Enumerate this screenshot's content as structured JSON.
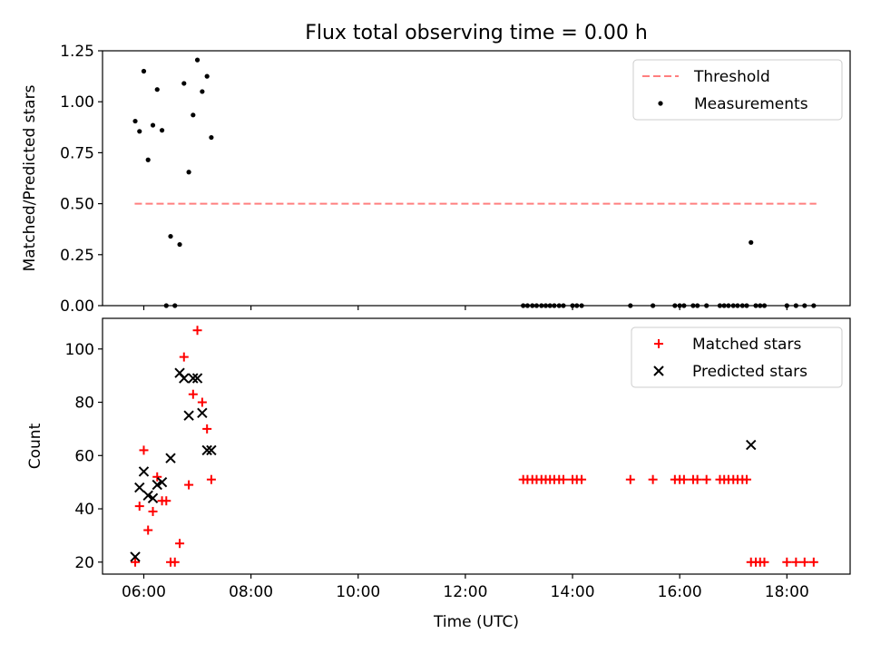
{
  "figure": {
    "title": "Flux total observing time = 0.00 h"
  },
  "chart_data": [
    {
      "type": "scatter",
      "panel": "top",
      "title": "Flux total observing time = 0.00 h",
      "xlabel": "",
      "ylabel": "Matched/Predicted stars",
      "xlim": [
        5.23,
        19.18
      ],
      "ylim": [
        0,
        1.25
      ],
      "yticks": [
        0.0,
        0.25,
        0.5,
        0.75,
        1.0,
        1.25
      ],
      "ytick_labels": [
        "0.00",
        "0.25",
        "0.50",
        "0.75",
        "1.00",
        "1.25"
      ],
      "xticks": [
        6,
        8,
        10,
        12,
        14,
        16,
        18
      ],
      "grid": false,
      "legend_position": "top-right",
      "legend": [
        {
          "label": "Threshold",
          "kind": "dashed-line",
          "color": "#ff7f7f"
        },
        {
          "label": "Measurements",
          "kind": "dot",
          "color": "#000000"
        }
      ],
      "threshold": {
        "name": "Threshold",
        "x": [
          5.83,
          18.55
        ],
        "y": 0.5,
        "color": "#ff7f7f"
      },
      "series": [
        {
          "name": "Measurements",
          "marker": "dot",
          "color": "#000000",
          "points": [
            [
              5.84,
              0.905
            ],
            [
              5.92,
              0.855
            ],
            [
              6.0,
              1.15
            ],
            [
              6.08,
              0.715
            ],
            [
              6.17,
              0.885
            ],
            [
              6.25,
              1.06
            ],
            [
              6.34,
              0.86
            ],
            [
              6.42,
              0.0
            ],
            [
              6.5,
              0.34
            ],
            [
              6.58,
              0.0
            ],
            [
              6.67,
              0.3
            ],
            [
              6.75,
              1.09
            ],
            [
              6.84,
              0.655
            ],
            [
              6.92,
              0.935
            ],
            [
              7.0,
              1.205
            ],
            [
              7.09,
              1.05
            ],
            [
              7.18,
              1.125
            ],
            [
              7.26,
              0.825
            ],
            [
              13.08,
              0.0
            ],
            [
              13.16,
              0.0
            ],
            [
              13.25,
              0.0
            ],
            [
              13.33,
              0.0
            ],
            [
              13.42,
              0.0
            ],
            [
              13.5,
              0.0
            ],
            [
              13.58,
              0.0
            ],
            [
              13.66,
              0.0
            ],
            [
              13.75,
              0.0
            ],
            [
              13.83,
              0.0
            ],
            [
              14.0,
              0.0
            ],
            [
              14.08,
              0.0
            ],
            [
              14.17,
              0.0
            ],
            [
              15.08,
              0.0
            ],
            [
              15.5,
              0.0
            ],
            [
              15.91,
              0.0
            ],
            [
              16.0,
              0.0
            ],
            [
              16.08,
              0.0
            ],
            [
              16.25,
              0.0
            ],
            [
              16.33,
              0.0
            ],
            [
              16.5,
              0.0
            ],
            [
              16.75,
              0.0
            ],
            [
              16.83,
              0.0
            ],
            [
              16.91,
              0.0
            ],
            [
              17.0,
              0.0
            ],
            [
              17.08,
              0.0
            ],
            [
              17.17,
              0.0
            ],
            [
              17.25,
              0.0
            ],
            [
              17.33,
              0.31
            ],
            [
              17.42,
              0.0
            ],
            [
              17.5,
              0.0
            ],
            [
              17.58,
              0.0
            ],
            [
              18.0,
              0.0
            ],
            [
              18.17,
              0.0
            ],
            [
              18.33,
              0.0
            ],
            [
              18.5,
              0.0
            ]
          ]
        }
      ]
    },
    {
      "type": "scatter",
      "panel": "bottom",
      "title": "",
      "xlabel": "Time (UTC)",
      "ylabel": "Count",
      "xlim": [
        5.23,
        19.18
      ],
      "ylim": [
        15.5,
        111.5
      ],
      "yticks": [
        20,
        40,
        60,
        80,
        100
      ],
      "ytick_labels": [
        "20",
        "40",
        "60",
        "80",
        "100"
      ],
      "xticks": [
        6,
        8,
        10,
        12,
        14,
        16,
        18
      ],
      "xtick_labels": [
        "06:00",
        "08:00",
        "10:00",
        "12:00",
        "14:00",
        "16:00",
        "18:00"
      ],
      "grid": false,
      "legend_position": "top-right",
      "legend": [
        {
          "label": "Matched stars",
          "kind": "plus",
          "color": "#ff0000"
        },
        {
          "label": "Predicted stars",
          "kind": "cross",
          "color": "#000000"
        }
      ],
      "series": [
        {
          "name": "Matched stars",
          "marker": "plus",
          "color": "#ff0000",
          "points": [
            [
              5.84,
              20
            ],
            [
              5.92,
              41
            ],
            [
              6.0,
              62
            ],
            [
              6.08,
              32
            ],
            [
              6.17,
              39
            ],
            [
              6.25,
              52
            ],
            [
              6.34,
              43
            ],
            [
              6.42,
              43
            ],
            [
              6.5,
              20
            ],
            [
              6.58,
              20
            ],
            [
              6.67,
              27
            ],
            [
              6.75,
              97
            ],
            [
              6.84,
              49
            ],
            [
              6.92,
              83
            ],
            [
              7.0,
              107
            ],
            [
              7.09,
              80
            ],
            [
              7.18,
              70
            ],
            [
              7.26,
              51
            ],
            [
              13.08,
              51
            ],
            [
              13.16,
              51
            ],
            [
              13.25,
              51
            ],
            [
              13.33,
              51
            ],
            [
              13.42,
              51
            ],
            [
              13.5,
              51
            ],
            [
              13.58,
              51
            ],
            [
              13.66,
              51
            ],
            [
              13.75,
              51
            ],
            [
              13.83,
              51
            ],
            [
              14.0,
              51
            ],
            [
              14.08,
              51
            ],
            [
              14.17,
              51
            ],
            [
              15.08,
              51
            ],
            [
              15.5,
              51
            ],
            [
              15.91,
              51
            ],
            [
              16.0,
              51
            ],
            [
              16.08,
              51
            ],
            [
              16.25,
              51
            ],
            [
              16.33,
              51
            ],
            [
              16.5,
              51
            ],
            [
              16.75,
              51
            ],
            [
              16.83,
              51
            ],
            [
              16.91,
              51
            ],
            [
              17.0,
              51
            ],
            [
              17.08,
              51
            ],
            [
              17.17,
              51
            ],
            [
              17.25,
              51
            ],
            [
              17.33,
              20
            ],
            [
              17.42,
              20
            ],
            [
              17.5,
              20
            ],
            [
              17.58,
              20
            ],
            [
              18.0,
              20
            ],
            [
              18.17,
              20
            ],
            [
              18.33,
              20
            ],
            [
              18.5,
              20
            ]
          ]
        },
        {
          "name": "Predicted stars",
          "marker": "cross",
          "color": "#000000",
          "points": [
            [
              5.84,
              22
            ],
            [
              5.92,
              48
            ],
            [
              6.0,
              54
            ],
            [
              6.08,
              45
            ],
            [
              6.17,
              44
            ],
            [
              6.25,
              49
            ],
            [
              6.34,
              50
            ],
            [
              6.5,
              59
            ],
            [
              6.67,
              91
            ],
            [
              6.75,
              89
            ],
            [
              6.84,
              75
            ],
            [
              6.92,
              89
            ],
            [
              7.0,
              89
            ],
            [
              7.09,
              76
            ],
            [
              7.18,
              62
            ],
            [
              7.26,
              62
            ],
            [
              17.33,
              64
            ]
          ]
        }
      ]
    }
  ]
}
